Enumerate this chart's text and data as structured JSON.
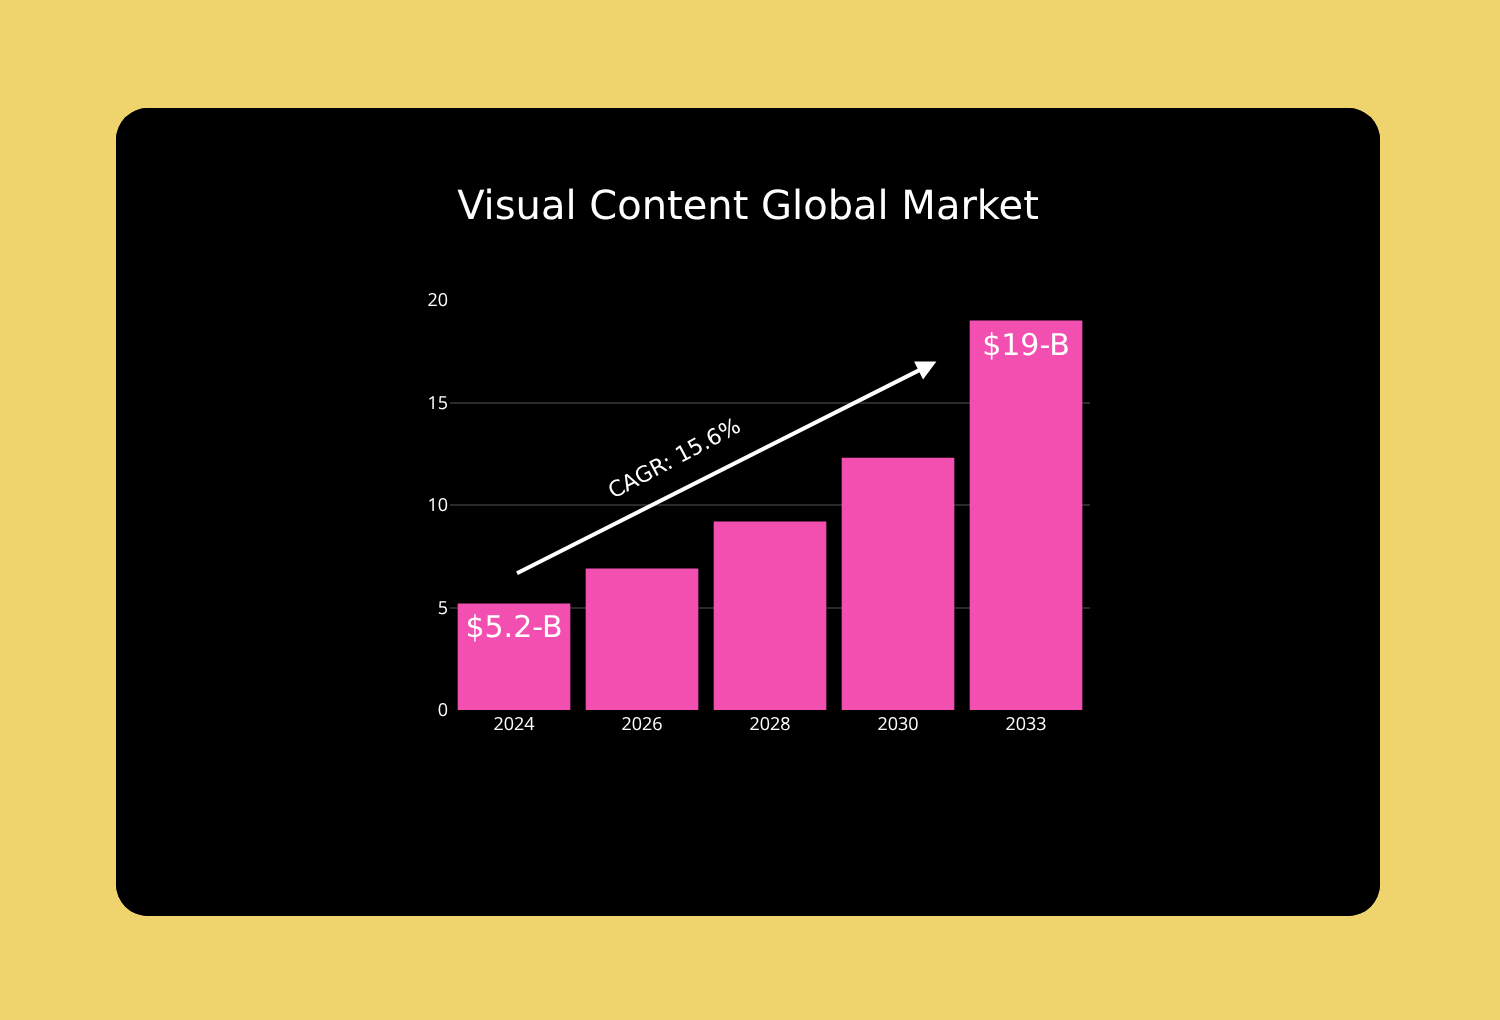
{
  "chart_data": {
    "type": "bar",
    "title": "Visual Content Global Market",
    "categories": [
      "2024",
      "2026",
      "2028",
      "2030",
      "2033"
    ],
    "values": [
      5.2,
      6.9,
      9.2,
      12.3,
      19
    ],
    "value_labels": [
      "$5.2-B",
      null,
      null,
      null,
      "$19-B"
    ],
    "color": "#f24fb0",
    "ylim": [
      0,
      20
    ],
    "yticks": [
      0,
      5,
      10,
      15,
      20
    ],
    "grid": "y",
    "annotations": [
      "CAGR: 15.6%"
    ]
  }
}
